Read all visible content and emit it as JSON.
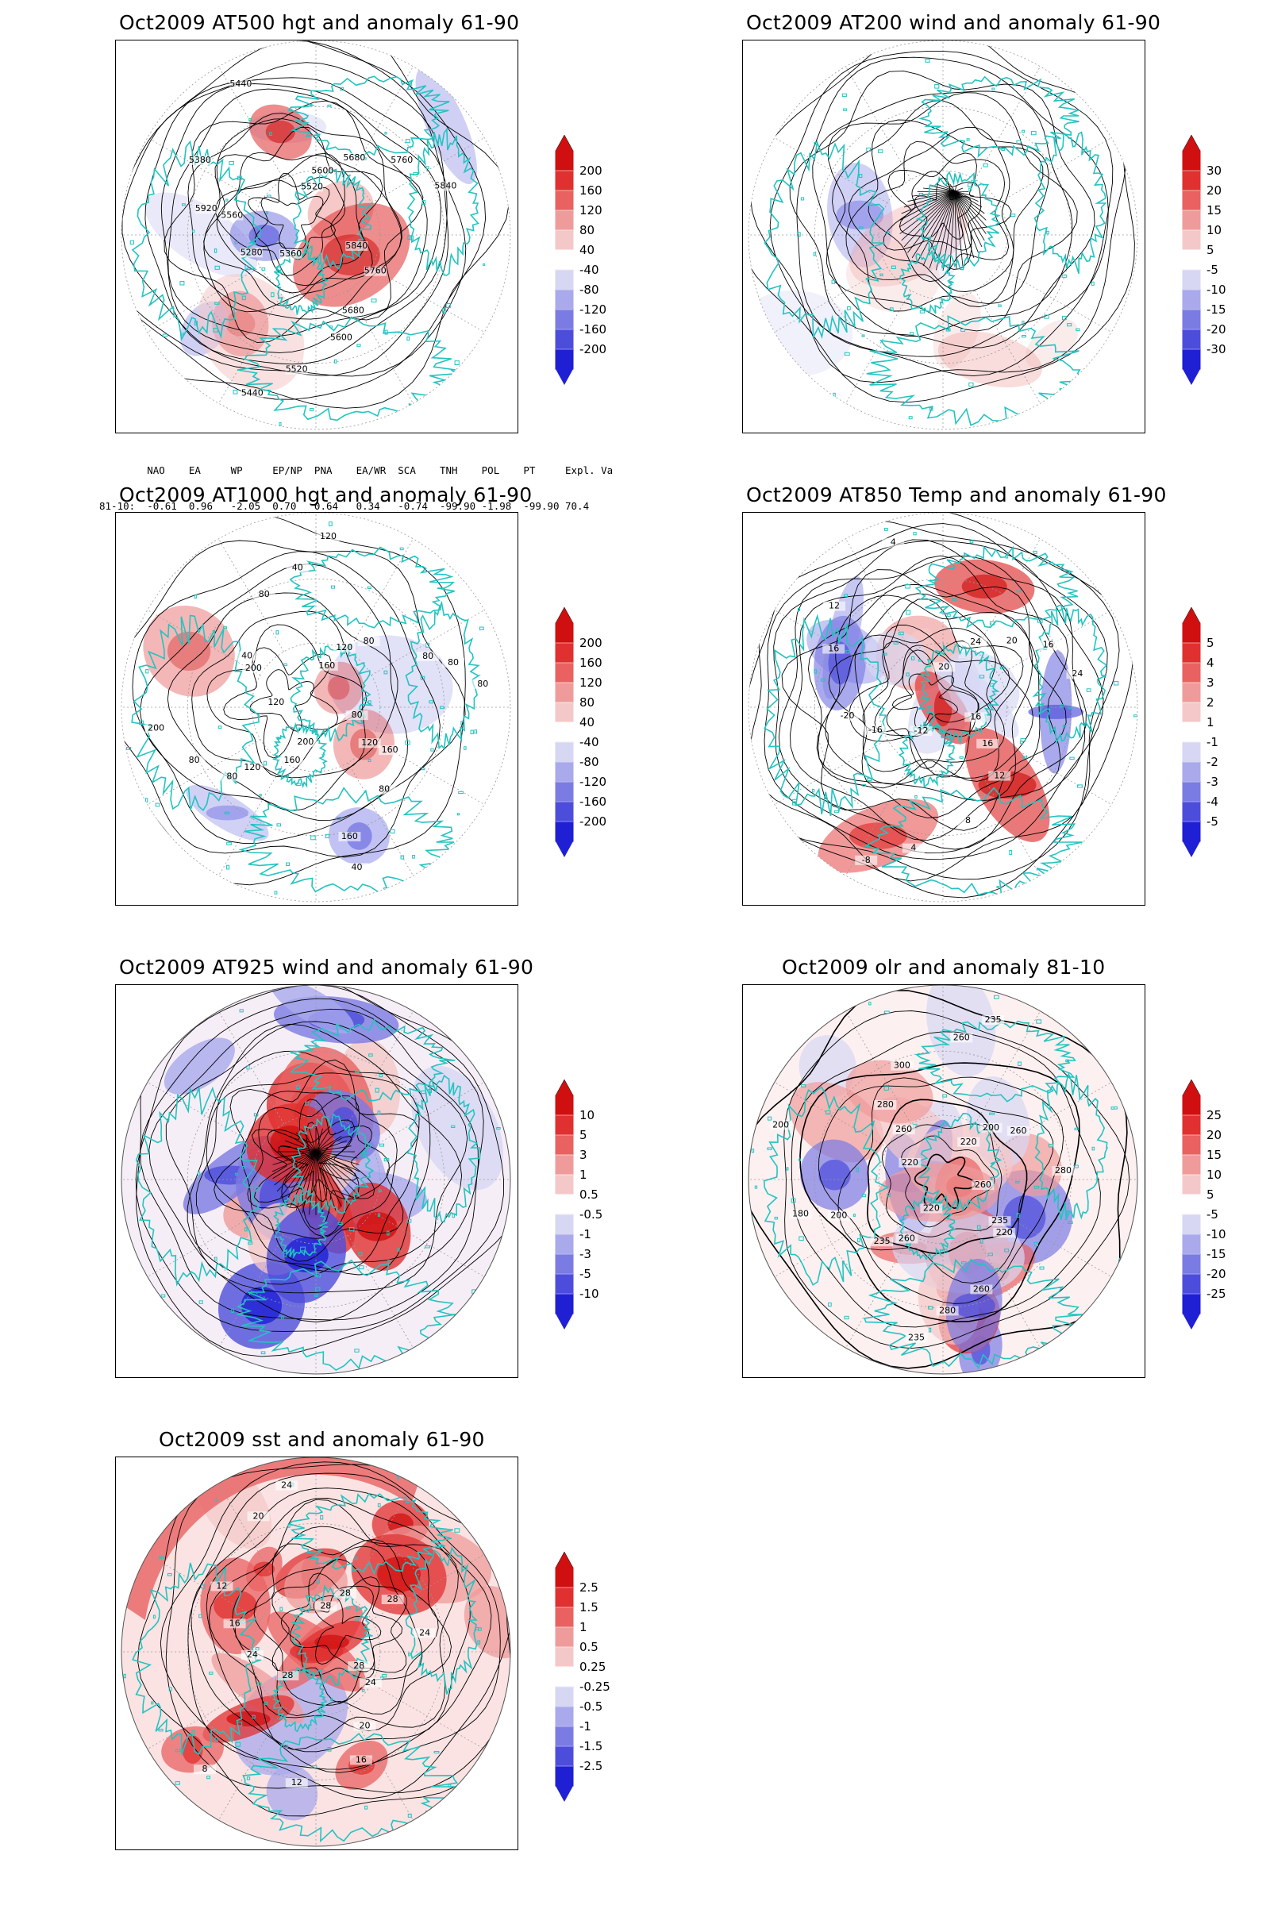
{
  "panels": [
    {
      "title": "Oct2009 AT500 hgt and anomaly 61-90",
      "colorbar": [
        "200",
        "160",
        "120",
        "80",
        "40",
        "-40",
        "-80",
        "-120",
        "-160",
        "-200"
      ],
      "contour_labels": [
        "5840",
        "5760",
        "5680",
        "5600",
        "5520",
        "5440",
        "5360",
        "5280",
        "5560",
        "5920",
        "5380",
        "5440",
        "5520",
        "5600",
        "5680",
        "5760",
        "5840"
      ],
      "indices": {
        "headers": [
          "NAO",
          "EA",
          "WP",
          "EP/NP",
          "PNA",
          "EA/WR",
          "SCA",
          "TNH",
          "POL",
          "PT",
          "Expl. Var."
        ],
        "row_label": "81-10:",
        "values": [
          "-0.61",
          "0.96",
          "-2.05",
          "0.70",
          "0.64",
          "0.34",
          "-0.74",
          "-99.90",
          "-1.98",
          "-99.90",
          "70.4"
        ]
      }
    },
    {
      "title": "Oct2009 AT200 wind and anomaly 61-90",
      "colorbar": [
        "30",
        "20",
        "15",
        "10",
        "5",
        "-5",
        "-10",
        "-15",
        "-20",
        "-30"
      ]
    },
    {
      "title": "Oct2009 AT1000 hgt and anomaly 61-90",
      "colorbar": [
        "200",
        "160",
        "120",
        "80",
        "40",
        "-40",
        "-80",
        "-120",
        "-160",
        "-200"
      ],
      "contour_labels": [
        "80",
        "120",
        "160",
        "80",
        "160",
        "40",
        "200",
        "160",
        "120",
        "80",
        "80",
        "200",
        "120",
        "200",
        "40",
        "80",
        "40",
        "120",
        "160",
        "120",
        "80",
        "80",
        "80",
        "80"
      ]
    },
    {
      "title": "Oct2009 AT850 Temp and anomaly 61-90",
      "colorbar": [
        "5",
        "4",
        "3",
        "2",
        "1",
        "-1",
        "-2",
        "-3",
        "-4",
        "-5"
      ],
      "contour_labels": [
        "16",
        "16",
        "12",
        "8",
        "4",
        "-8",
        "-12",
        "-16",
        "-20",
        "16",
        "12",
        "4",
        "20",
        "24",
        "20",
        "16",
        "24"
      ]
    },
    {
      "title": "Oct2009 AT925 wind and anomaly 61-90",
      "colorbar": [
        "10",
        "5",
        "3",
        "1",
        "0.5",
        "-0.5",
        "-1",
        "-3",
        "-5",
        "-10"
      ]
    },
    {
      "title": "Oct2009 olr and anomaly 81-10",
      "colorbar": [
        "25",
        "20",
        "15",
        "10",
        "5",
        "-5",
        "-10",
        "-15",
        "-20",
        "-25"
      ],
      "contour_labels": [
        "260",
        "235",
        "220",
        "260",
        "280",
        "235",
        "220",
        "260",
        "235",
        "200",
        "180",
        "200",
        "220",
        "260",
        "280",
        "300",
        "260",
        "235",
        "220",
        "200",
        "260",
        "280"
      ]
    },
    {
      "title": "Oct2009 sst and anomaly 61-90",
      "colorbar": [
        "2.5",
        "1.5",
        "1",
        "0.5",
        "0.25",
        "-0.25",
        "-0.5",
        "-1",
        "-1.5",
        "-2.5"
      ],
      "contour_labels": [
        "28",
        "24",
        "20",
        "16",
        "12",
        "8",
        "28",
        "24",
        "16",
        "12",
        "20",
        "24",
        "28",
        "28",
        "28",
        "24"
      ]
    }
  ],
  "colors": {
    "land": "#22c4c0",
    "contour": "#000000",
    "grid": "#999999",
    "pos_scale": [
      "#f4c8c8",
      "#ef9b9b",
      "#e96161",
      "#e03030",
      "#d01010"
    ],
    "neg_scale": [
      "#d7d7f4",
      "#a9a9ec",
      "#7b7be4",
      "#4d4ddc",
      "#1f1fd4"
    ]
  }
}
